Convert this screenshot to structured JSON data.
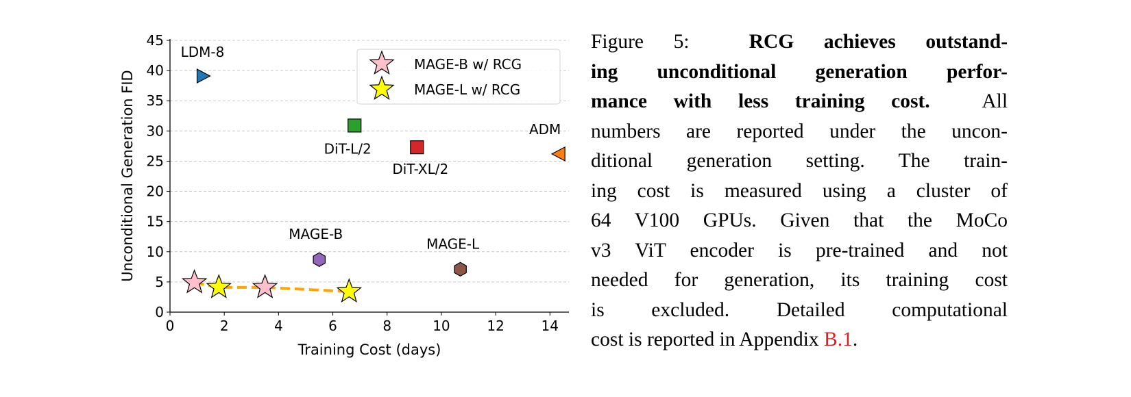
{
  "chart_data": {
    "type": "scatter",
    "xlabel": "Training Cost (days)",
    "ylabel": "Unconditional Generation FID",
    "xlim": [
      0,
      14.7
    ],
    "ylim": [
      0,
      45
    ],
    "xticks": [
      0,
      2,
      4,
      6,
      8,
      10,
      12,
      14
    ],
    "yticks": [
      0,
      5,
      10,
      15,
      20,
      25,
      30,
      35,
      40,
      45
    ],
    "grid": "horizontal dashed",
    "legend_position": "top-right",
    "points": [
      {
        "label": "LDM-8",
        "x": 1.2,
        "y": 39.1,
        "marker": "triangle-right",
        "color": "#1f77b4"
      },
      {
        "label": "DiT-L/2",
        "x": 6.8,
        "y": 30.9,
        "marker": "square",
        "color": "#2ca02c"
      },
      {
        "label": "DiT-XL/2",
        "x": 9.1,
        "y": 27.3,
        "marker": "square",
        "color": "#d62728"
      },
      {
        "label": "ADM",
        "x": 14.35,
        "y": 26.2,
        "marker": "triangle-left",
        "color": "#ff7f0e"
      },
      {
        "label": "MAGE-B",
        "x": 5.5,
        "y": 8.7,
        "marker": "hexagon",
        "color": "#9467bd"
      },
      {
        "label": "MAGE-L",
        "x": 10.7,
        "y": 7.1,
        "marker": "hexagon",
        "color": "#8c564b"
      }
    ],
    "series": [
      {
        "name": "MAGE-B w/ RCG",
        "marker": "star",
        "color": "#ffc0cb",
        "x": [
          0.9,
          3.5
        ],
        "y": [
          4.9,
          4.1
        ]
      },
      {
        "name": "MAGE-L w/ RCG",
        "marker": "star",
        "color": "#ffff00",
        "x": [
          1.8,
          6.6
        ],
        "y": [
          4.1,
          3.4
        ]
      }
    ],
    "trend_line": {
      "color": "#ffa500",
      "style": "dashed"
    }
  },
  "caption": {
    "figure_label": "Figure 5:",
    "bold_1": "RCG achieves outstand-",
    "bold_2": "ing unconditional generation perfor-",
    "bold_3": "mance with less training cost.",
    "line_3_rest": "All",
    "line_4": "numbers are reported under the uncon-",
    "line_5": "ditional generation setting.  The train-",
    "line_6": "ing cost is measured using a cluster of",
    "line_7": "64 V100 GPUs.  Given that the MoCo",
    "line_8": "v3 ViT encoder is pre-trained and not",
    "line_9": "needed for generation, its training cost",
    "line_10": "is excluded.  Detailed computational",
    "line_11": "cost is reported in Appendix",
    "ref": "B.1",
    "end": "."
  }
}
